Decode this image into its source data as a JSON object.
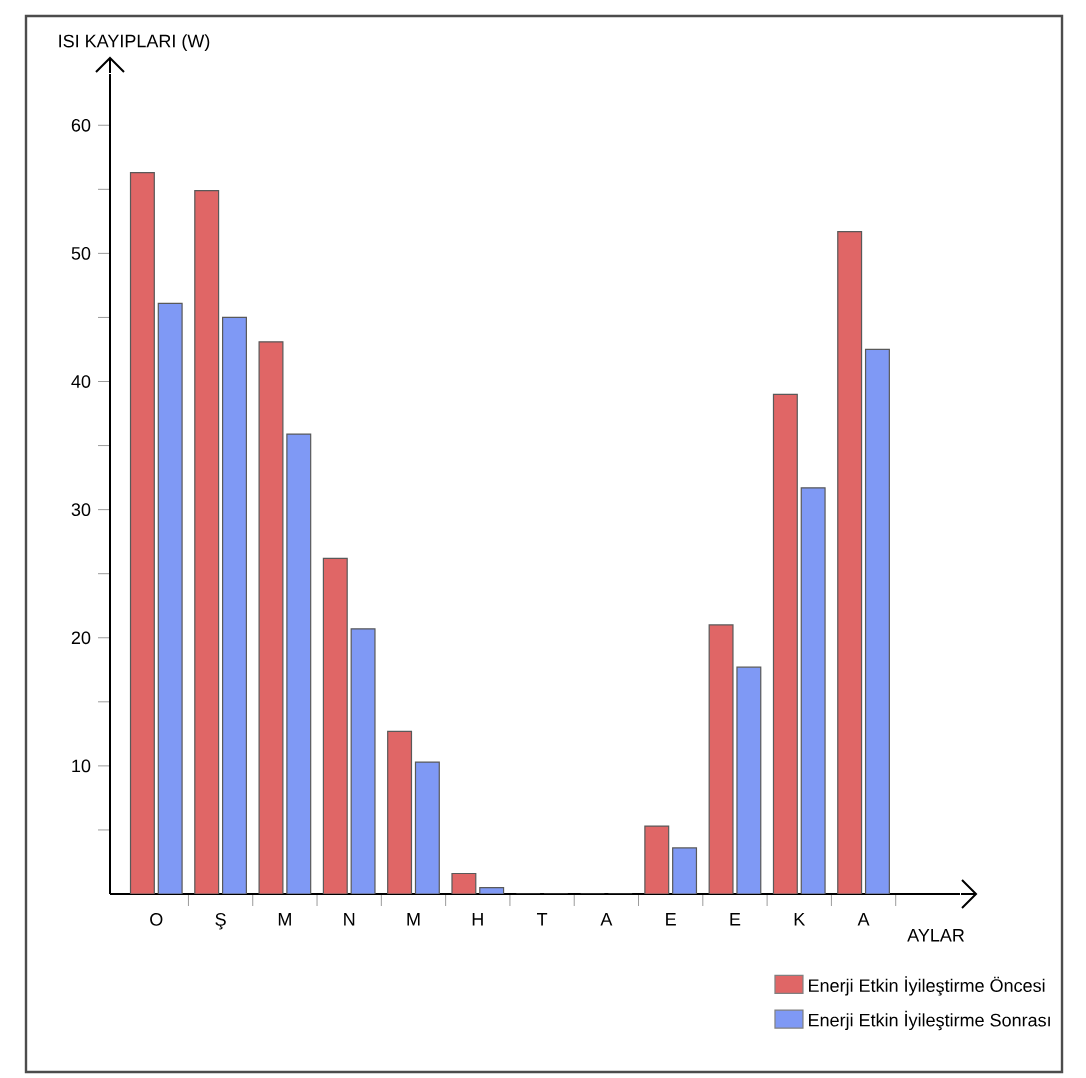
{
  "chart_data": {
    "type": "bar",
    "xlabel": "AYLAR",
    "ylabel": "ISI KAYIPLARI (W)",
    "categories": [
      "O",
      "Ş",
      "M",
      "N",
      "M",
      "H",
      "T",
      "A",
      "E",
      "E",
      "K",
      "A"
    ],
    "series": [
      {
        "name": "Enerji Etkin İyileştirme Öncesi",
        "color": "#e06666",
        "values": [
          56.3,
          54.9,
          43.1,
          26.2,
          12.7,
          1.6,
          0,
          0,
          5.3,
          21.0,
          39.0,
          51.7
        ]
      },
      {
        "name": "Enerji Etkin İyileştirme Sonrası",
        "color": "#7f99f5",
        "values": [
          46.1,
          45.0,
          35.9,
          20.7,
          10.3,
          0.5,
          0,
          0,
          3.6,
          17.7,
          31.7,
          42.5
        ]
      }
    ],
    "ylim": [
      0,
      64
    ],
    "yticks": [
      {
        "value": 5,
        "label": null
      },
      10,
      {
        "value": 15,
        "label": null
      },
      20,
      {
        "value": 25,
        "label": null
      },
      30,
      {
        "value": 35,
        "label": null
      },
      40,
      {
        "value": 45,
        "label": null
      },
      50,
      {
        "value": 55,
        "label": null
      },
      60
    ],
    "grid": false,
    "legend": "bottom right"
  }
}
